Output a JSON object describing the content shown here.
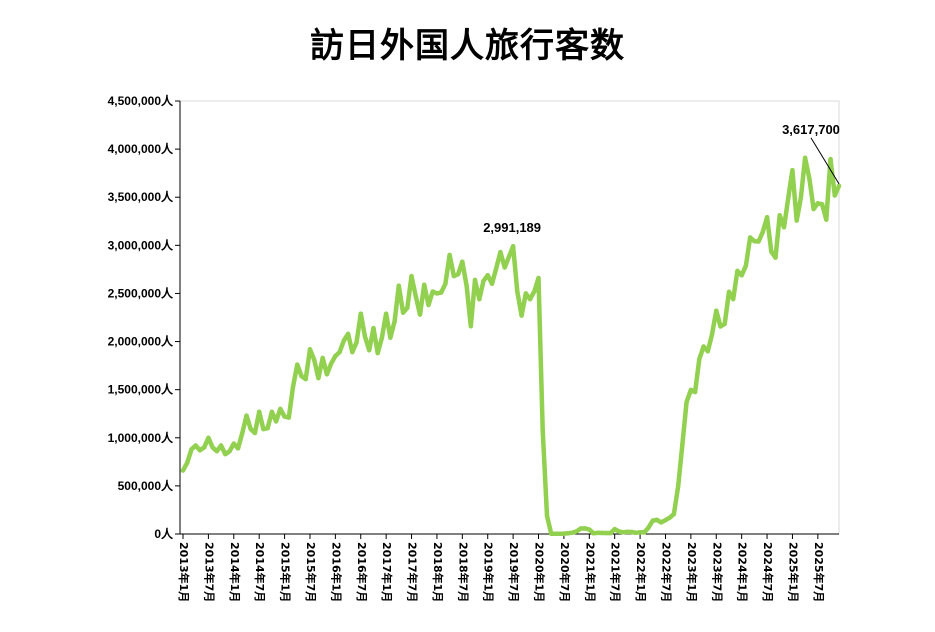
{
  "chart_data": {
    "type": "line",
    "title": "訪日外国人旅行客数",
    "xlabel": "",
    "ylabel": "",
    "ylim": [
      0,
      4500000
    ],
    "yticks": [
      "0人",
      "500,000人",
      "1,000,000人",
      "1,500,000人",
      "2,000,000人",
      "2,500,000人",
      "3,000,000人",
      "3,500,000人",
      "4,000,000人",
      "4,500,000人"
    ],
    "xticks": [
      "2013年1月",
      "2013年7月",
      "2014年1月",
      "2014年7月",
      "2015年1月",
      "2015年7月",
      "2016年1月",
      "2016年7月",
      "2017年1月",
      "2017年7月",
      "2018年1月",
      "2018年7月",
      "2019年1月",
      "2019年7月",
      "2020年1月",
      "2020年7月",
      "2021年1月",
      "2021年7月",
      "2022年1月",
      "2022年7月",
      "2023年1月",
      "2023年7月",
      "2024年1月",
      "2024年7月",
      "2025年1月",
      "2025年7月"
    ],
    "grid": false,
    "legend": "none",
    "line_color": "#92d050",
    "x_start": "2013年1月",
    "x_end": "2025年12月",
    "series": [
      {
        "values": [
          660000,
          740000,
          880000,
          920000,
          870000,
          900000,
          1000000,
          900000,
          860000,
          920000,
          830000,
          860000,
          940000,
          890000,
          1050000,
          1230000,
          1090000,
          1050000,
          1270000,
          1090000,
          1100000,
          1270000,
          1170000,
          1300000,
          1220000,
          1210000,
          1530000,
          1760000,
          1640000,
          1610000,
          1920000,
          1810000,
          1620000,
          1830000,
          1660000,
          1770000,
          1850000,
          1890000,
          2010000,
          2080000,
          1890000,
          1990000,
          2290000,
          2050000,
          1910000,
          2140000,
          1880000,
          2040000,
          2290000,
          2040000,
          2210000,
          2580000,
          2300000,
          2350000,
          2680000,
          2470000,
          2280000,
          2590000,
          2380000,
          2520000,
          2500000,
          2510000,
          2600000,
          2900000,
          2680000,
          2700000,
          2830000,
          2580000,
          2160000,
          2640000,
          2440000,
          2630000,
          2690000,
          2600000,
          2760000,
          2930000,
          2770000,
          2880000,
          2991189,
          2520000,
          2270000,
          2500000,
          2440000,
          2520000,
          2660000,
          1080000,
          190000,
          2900,
          1700,
          2600,
          3800,
          8700,
          13700,
          27400,
          56700,
          58700,
          46500,
          7400,
          12300,
          10900,
          10000,
          9300,
          51100,
          25900,
          17700,
          22100,
          20700,
          12100,
          17800,
          16700,
          66100,
          139500,
          147000,
          120400,
          144500,
          169900,
          206500,
          498600,
          934500,
          1373000,
          1497300,
          1475300,
          1817500,
          1949100,
          1899000,
          2073300,
          2320600,
          2156900,
          2183300,
          2516500,
          2440800,
          2734000,
          2688100,
          2788000,
          3081600,
          3042900,
          3040000,
          3140000,
          3292600,
          2935000,
          2872000,
          3312000,
          3187000,
          3489000,
          3781000,
          3258000,
          3497000,
          3909000,
          3693000,
          3377000,
          3437000,
          3428000,
          3267000,
          3896000,
          3518000,
          3617700
        ]
      }
    ],
    "annotations": [
      {
        "text": "2,991,189",
        "value": 2991189
      },
      {
        "text": "3,617,700",
        "value": 3617700
      }
    ]
  }
}
